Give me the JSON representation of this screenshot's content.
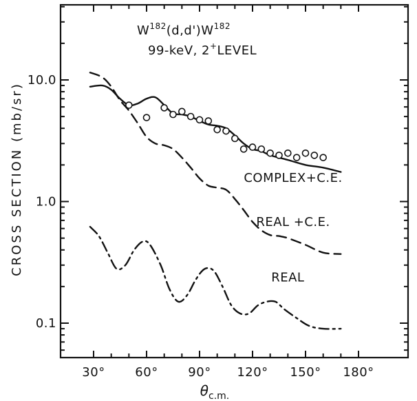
{
  "chart_data": {
    "type": "line",
    "title": {
      "nucleus_left": "W",
      "mass_left": "182",
      "reaction": "(d,d')",
      "nucleus_right": "W",
      "mass_right": "182"
    },
    "subtitle": {
      "level_energy": "99-keV, 2",
      "spin_sup": "+",
      "level_word": "LEVEL"
    },
    "ylabel": "CROSS SECTION (mb/sr)",
    "xlabel_main": "θ",
    "xlabel_sub": "c.m.",
    "x_scale": "linear",
    "y_scale": "log",
    "xlim": [
      25,
      190
    ],
    "ylim": [
      0.05,
      40
    ],
    "x_ticks": [
      {
        "value": 30,
        "label": "30°"
      },
      {
        "value": 60,
        "label": "60°"
      },
      {
        "value": 90,
        "label": "90°"
      },
      {
        "value": 120,
        "label": "120°"
      },
      {
        "value": 150,
        "label": "150°"
      },
      {
        "value": 180,
        "label": "180°"
      }
    ],
    "y_ticks": [
      {
        "value": 0.1,
        "label": "0.1"
      },
      {
        "value": 1.0,
        "label": "1.0"
      },
      {
        "value": 10.0,
        "label": "10.0"
      }
    ],
    "grid": false,
    "series": [
      {
        "name": "COMPLEX+C.E.",
        "style": "solid",
        "x": [
          28,
          35,
          40,
          45,
          50,
          55,
          60,
          65,
          70,
          75,
          80,
          85,
          90,
          95,
          100,
          105,
          110,
          115,
          120,
          125,
          130,
          140,
          150,
          160,
          170
        ],
        "y": [
          8.8,
          9.0,
          8.3,
          7.0,
          6.2,
          6.4,
          7.0,
          7.2,
          6.2,
          5.3,
          5.2,
          5.0,
          4.6,
          4.3,
          4.2,
          4.0,
          3.5,
          3.0,
          2.7,
          2.6,
          2.4,
          2.2,
          2.0,
          1.9,
          1.75
        ]
      },
      {
        "name": "REAL +C.E.",
        "style": "dashed",
        "x": [
          28,
          35,
          40,
          45,
          50,
          55,
          60,
          65,
          70,
          75,
          80,
          85,
          90,
          95,
          100,
          105,
          110,
          115,
          120,
          125,
          130,
          135,
          140,
          150,
          160,
          170
        ],
        "y": [
          11.5,
          10.5,
          8.8,
          6.8,
          5.6,
          4.4,
          3.4,
          3.0,
          2.9,
          2.7,
          2.3,
          1.9,
          1.55,
          1.35,
          1.3,
          1.25,
          1.05,
          0.85,
          0.68,
          0.58,
          0.53,
          0.52,
          0.5,
          0.44,
          0.38,
          0.37
        ]
      },
      {
        "name": "REAL",
        "style": "dashdot",
        "x": [
          28,
          33,
          38,
          43,
          48,
          53,
          58,
          62,
          68,
          73,
          78,
          83,
          88,
          93,
          98,
          103,
          108,
          113,
          118,
          123,
          128,
          133,
          138,
          145,
          152,
          160,
          170
        ],
        "y": [
          0.62,
          0.52,
          0.38,
          0.28,
          0.3,
          0.4,
          0.47,
          0.44,
          0.3,
          0.19,
          0.15,
          0.17,
          0.23,
          0.28,
          0.27,
          0.2,
          0.14,
          0.12,
          0.12,
          0.14,
          0.15,
          0.15,
          0.13,
          0.11,
          0.095,
          0.09,
          0.09
        ]
      }
    ],
    "data_points": {
      "marker": "open-circle",
      "x": [
        50,
        60,
        70,
        75,
        80,
        85,
        90,
        95,
        100,
        105,
        110,
        115,
        120,
        125,
        130,
        135,
        140,
        145,
        150,
        155,
        160
      ],
      "y": [
        6.2,
        4.9,
        5.9,
        5.2,
        5.5,
        5.0,
        4.7,
        4.6,
        3.9,
        3.8,
        3.3,
        2.7,
        2.8,
        2.7,
        2.5,
        2.4,
        2.5,
        2.3,
        2.5,
        2.4,
        2.3
      ]
    },
    "annotations": [
      {
        "text": "COMPLEX+C.E.",
        "x": 143,
        "y": 1.45
      },
      {
        "text": "REAL +C.E.",
        "x": 143,
        "y": 0.63
      },
      {
        "text": "REAL",
        "x": 140,
        "y": 0.22
      }
    ]
  }
}
